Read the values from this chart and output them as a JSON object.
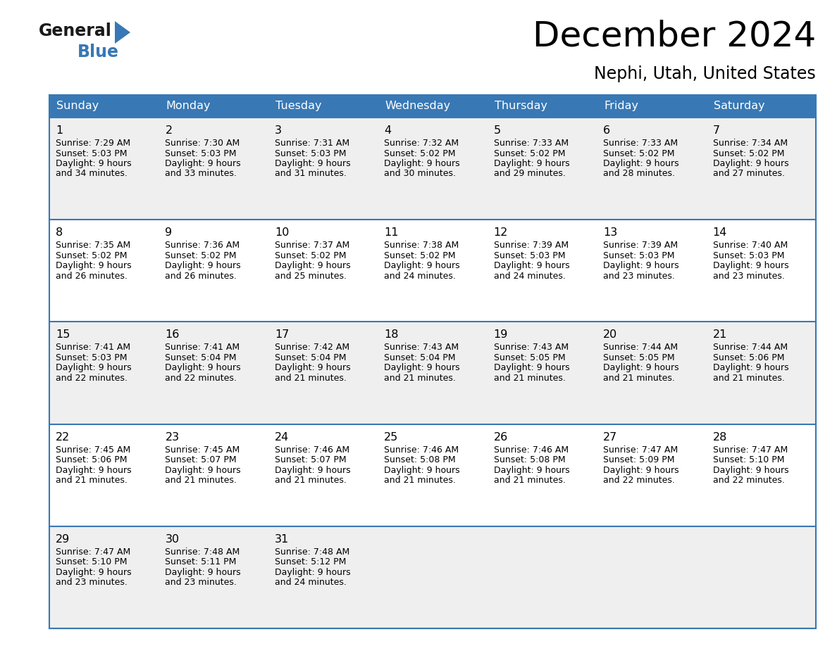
{
  "title": "December 2024",
  "subtitle": "Nephi, Utah, United States",
  "header_bg": "#3878b4",
  "header_text": "#ffffff",
  "row_bg_odd": "#efefef",
  "row_bg_even": "#ffffff",
  "border_color": "#3878b4",
  "days_of_week": [
    "Sunday",
    "Monday",
    "Tuesday",
    "Wednesday",
    "Thursday",
    "Friday",
    "Saturday"
  ],
  "calendar": [
    [
      {
        "day": 1,
        "sunrise": "7:29 AM",
        "sunset": "5:03 PM",
        "daylight_line1": "9 hours",
        "daylight_line2": "and 34 minutes."
      },
      {
        "day": 2,
        "sunrise": "7:30 AM",
        "sunset": "5:03 PM",
        "daylight_line1": "9 hours",
        "daylight_line2": "and 33 minutes."
      },
      {
        "day": 3,
        "sunrise": "7:31 AM",
        "sunset": "5:03 PM",
        "daylight_line1": "9 hours",
        "daylight_line2": "and 31 minutes."
      },
      {
        "day": 4,
        "sunrise": "7:32 AM",
        "sunset": "5:02 PM",
        "daylight_line1": "9 hours",
        "daylight_line2": "and 30 minutes."
      },
      {
        "day": 5,
        "sunrise": "7:33 AM",
        "sunset": "5:02 PM",
        "daylight_line1": "9 hours",
        "daylight_line2": "and 29 minutes."
      },
      {
        "day": 6,
        "sunrise": "7:33 AM",
        "sunset": "5:02 PM",
        "daylight_line1": "9 hours",
        "daylight_line2": "and 28 minutes."
      },
      {
        "day": 7,
        "sunrise": "7:34 AM",
        "sunset": "5:02 PM",
        "daylight_line1": "9 hours",
        "daylight_line2": "and 27 minutes."
      }
    ],
    [
      {
        "day": 8,
        "sunrise": "7:35 AM",
        "sunset": "5:02 PM",
        "daylight_line1": "9 hours",
        "daylight_line2": "and 26 minutes."
      },
      {
        "day": 9,
        "sunrise": "7:36 AM",
        "sunset": "5:02 PM",
        "daylight_line1": "9 hours",
        "daylight_line2": "and 26 minutes."
      },
      {
        "day": 10,
        "sunrise": "7:37 AM",
        "sunset": "5:02 PM",
        "daylight_line1": "9 hours",
        "daylight_line2": "and 25 minutes."
      },
      {
        "day": 11,
        "sunrise": "7:38 AM",
        "sunset": "5:02 PM",
        "daylight_line1": "9 hours",
        "daylight_line2": "and 24 minutes."
      },
      {
        "day": 12,
        "sunrise": "7:39 AM",
        "sunset": "5:03 PM",
        "daylight_line1": "9 hours",
        "daylight_line2": "and 24 minutes."
      },
      {
        "day": 13,
        "sunrise": "7:39 AM",
        "sunset": "5:03 PM",
        "daylight_line1": "9 hours",
        "daylight_line2": "and 23 minutes."
      },
      {
        "day": 14,
        "sunrise": "7:40 AM",
        "sunset": "5:03 PM",
        "daylight_line1": "9 hours",
        "daylight_line2": "and 23 minutes."
      }
    ],
    [
      {
        "day": 15,
        "sunrise": "7:41 AM",
        "sunset": "5:03 PM",
        "daylight_line1": "9 hours",
        "daylight_line2": "and 22 minutes."
      },
      {
        "day": 16,
        "sunrise": "7:41 AM",
        "sunset": "5:04 PM",
        "daylight_line1": "9 hours",
        "daylight_line2": "and 22 minutes."
      },
      {
        "day": 17,
        "sunrise": "7:42 AM",
        "sunset": "5:04 PM",
        "daylight_line1": "9 hours",
        "daylight_line2": "and 21 minutes."
      },
      {
        "day": 18,
        "sunrise": "7:43 AM",
        "sunset": "5:04 PM",
        "daylight_line1": "9 hours",
        "daylight_line2": "and 21 minutes."
      },
      {
        "day": 19,
        "sunrise": "7:43 AM",
        "sunset": "5:05 PM",
        "daylight_line1": "9 hours",
        "daylight_line2": "and 21 minutes."
      },
      {
        "day": 20,
        "sunrise": "7:44 AM",
        "sunset": "5:05 PM",
        "daylight_line1": "9 hours",
        "daylight_line2": "and 21 minutes."
      },
      {
        "day": 21,
        "sunrise": "7:44 AM",
        "sunset": "5:06 PM",
        "daylight_line1": "9 hours",
        "daylight_line2": "and 21 minutes."
      }
    ],
    [
      {
        "day": 22,
        "sunrise": "7:45 AM",
        "sunset": "5:06 PM",
        "daylight_line1": "9 hours",
        "daylight_line2": "and 21 minutes."
      },
      {
        "day": 23,
        "sunrise": "7:45 AM",
        "sunset": "5:07 PM",
        "daylight_line1": "9 hours",
        "daylight_line2": "and 21 minutes."
      },
      {
        "day": 24,
        "sunrise": "7:46 AM",
        "sunset": "5:07 PM",
        "daylight_line1": "9 hours",
        "daylight_line2": "and 21 minutes."
      },
      {
        "day": 25,
        "sunrise": "7:46 AM",
        "sunset": "5:08 PM",
        "daylight_line1": "9 hours",
        "daylight_line2": "and 21 minutes."
      },
      {
        "day": 26,
        "sunrise": "7:46 AM",
        "sunset": "5:08 PM",
        "daylight_line1": "9 hours",
        "daylight_line2": "and 21 minutes."
      },
      {
        "day": 27,
        "sunrise": "7:47 AM",
        "sunset": "5:09 PM",
        "daylight_line1": "9 hours",
        "daylight_line2": "and 22 minutes."
      },
      {
        "day": 28,
        "sunrise": "7:47 AM",
        "sunset": "5:10 PM",
        "daylight_line1": "9 hours",
        "daylight_line2": "and 22 minutes."
      }
    ],
    [
      {
        "day": 29,
        "sunrise": "7:47 AM",
        "sunset": "5:10 PM",
        "daylight_line1": "9 hours",
        "daylight_line2": "and 23 minutes."
      },
      {
        "day": 30,
        "sunrise": "7:48 AM",
        "sunset": "5:11 PM",
        "daylight_line1": "9 hours",
        "daylight_line2": "and 23 minutes."
      },
      {
        "day": 31,
        "sunrise": "7:48 AM",
        "sunset": "5:12 PM",
        "daylight_line1": "9 hours",
        "daylight_line2": "and 24 minutes."
      },
      null,
      null,
      null,
      null
    ]
  ],
  "logo_general_color": "#1a1a1a",
  "logo_blue_color": "#3878b4",
  "logo_triangle_color": "#3878b4"
}
